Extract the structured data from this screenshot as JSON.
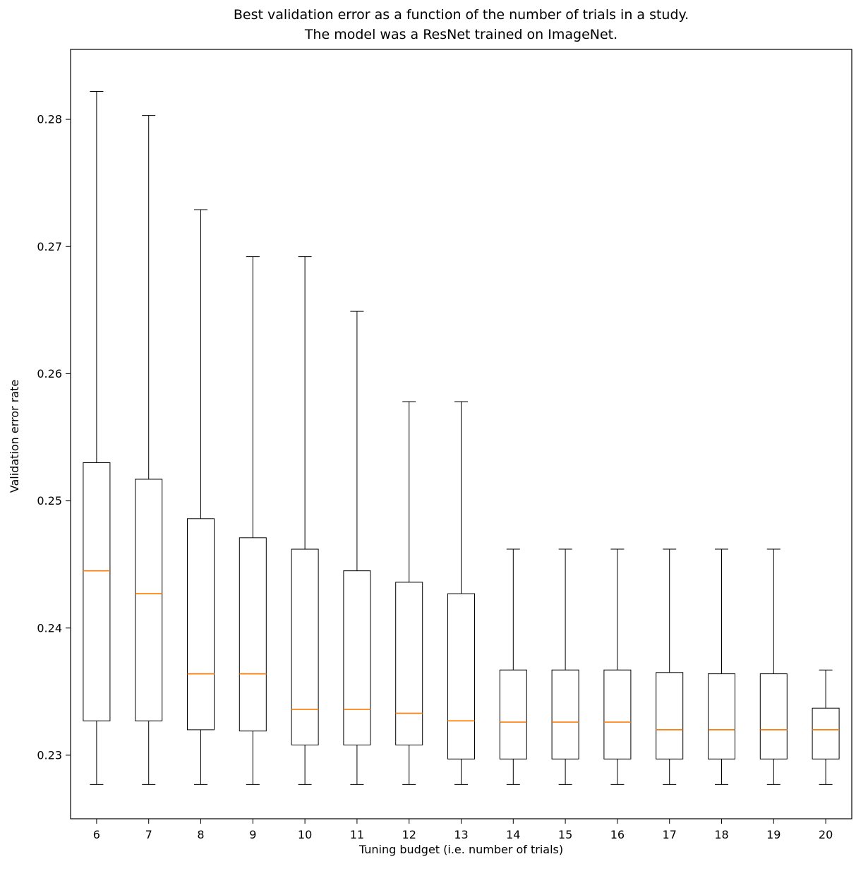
{
  "figure": {
    "title": "Best validation error as a function of the number of trials in a study.\nThe model was a ResNet trained on ImageNet.",
    "xlabel": "Tuning budget (i.e. number of trials)",
    "ylabel": "Validation error rate"
  },
  "chart_data": {
    "type": "boxplot",
    "title": "Best validation error as a function of the number of trials in a study. The model was a ResNet trained on ImageNet.",
    "xlabel": "Tuning budget (i.e. number of trials)",
    "ylabel": "Validation error rate",
    "categories": [
      6,
      7,
      8,
      9,
      10,
      11,
      12,
      13,
      14,
      15,
      16,
      17,
      18,
      19,
      20
    ],
    "ylim": [
      0.225,
      0.2855
    ],
    "yticks": [
      0.23,
      0.24,
      0.25,
      0.26,
      0.27,
      0.28
    ],
    "grid": false,
    "legend": null,
    "colors": {
      "box_edge": "#000000",
      "median": "#ff7f0e",
      "background": "#ffffff"
    },
    "boxes": [
      {
        "category": 6,
        "whisker_low": 0.2277,
        "q1": 0.2327,
        "median": 0.2445,
        "q3": 0.253,
        "whisker_high": 0.2822
      },
      {
        "category": 7,
        "whisker_low": 0.2277,
        "q1": 0.2327,
        "median": 0.2427,
        "q3": 0.2517,
        "whisker_high": 0.2803
      },
      {
        "category": 8,
        "whisker_low": 0.2277,
        "q1": 0.232,
        "median": 0.2364,
        "q3": 0.2486,
        "whisker_high": 0.2729
      },
      {
        "category": 9,
        "whisker_low": 0.2277,
        "q1": 0.2319,
        "median": 0.2364,
        "q3": 0.2471,
        "whisker_high": 0.2692
      },
      {
        "category": 10,
        "whisker_low": 0.2277,
        "q1": 0.2308,
        "median": 0.2336,
        "q3": 0.2462,
        "whisker_high": 0.2692
      },
      {
        "category": 11,
        "whisker_low": 0.2277,
        "q1": 0.2308,
        "median": 0.2336,
        "q3": 0.2445,
        "whisker_high": 0.2649
      },
      {
        "category": 12,
        "whisker_low": 0.2277,
        "q1": 0.2308,
        "median": 0.2333,
        "q3": 0.2436,
        "whisker_high": 0.2578
      },
      {
        "category": 13,
        "whisker_low": 0.2277,
        "q1": 0.2297,
        "median": 0.2327,
        "q3": 0.2427,
        "whisker_high": 0.2578
      },
      {
        "category": 14,
        "whisker_low": 0.2277,
        "q1": 0.2297,
        "median": 0.2326,
        "q3": 0.2367,
        "whisker_high": 0.2462
      },
      {
        "category": 15,
        "whisker_low": 0.2277,
        "q1": 0.2297,
        "median": 0.2326,
        "q3": 0.2367,
        "whisker_high": 0.2462
      },
      {
        "category": 16,
        "whisker_low": 0.2277,
        "q1": 0.2297,
        "median": 0.2326,
        "q3": 0.2367,
        "whisker_high": 0.2462
      },
      {
        "category": 17,
        "whisker_low": 0.2277,
        "q1": 0.2297,
        "median": 0.232,
        "q3": 0.2365,
        "whisker_high": 0.2462
      },
      {
        "category": 18,
        "whisker_low": 0.2277,
        "q1": 0.2297,
        "median": 0.232,
        "q3": 0.2364,
        "whisker_high": 0.2462
      },
      {
        "category": 19,
        "whisker_low": 0.2277,
        "q1": 0.2297,
        "median": 0.232,
        "q3": 0.2364,
        "whisker_high": 0.2462
      },
      {
        "category": 20,
        "whisker_low": 0.2277,
        "q1": 0.2297,
        "median": 0.232,
        "q3": 0.2337,
        "whisker_high": 0.2367
      }
    ]
  }
}
